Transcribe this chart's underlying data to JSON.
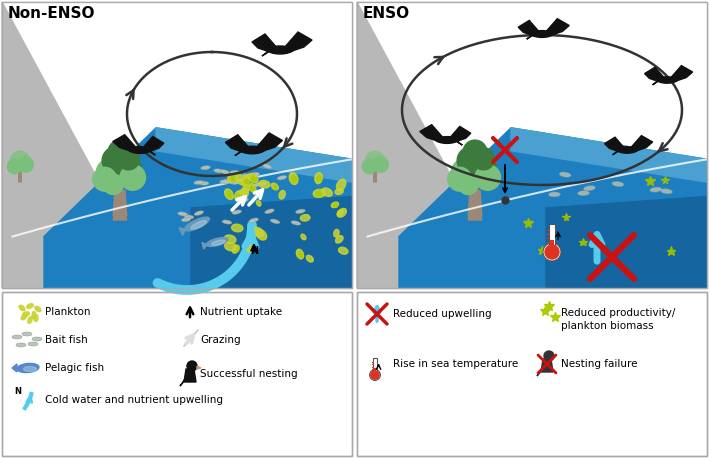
{
  "background_color": "#ffffff",
  "panel_left_title": "Non-ENSO",
  "panel_right_title": "ENSO",
  "legend_left_col1": [
    {
      "label": "Plankton",
      "type": "plankton"
    },
    {
      "label": "Bait fish",
      "type": "bait_fish"
    },
    {
      "label": "Pelagic fish",
      "type": "pelagic_fish"
    },
    {
      "label": "Cold water and nutrient upwelling",
      "type": "upwelling"
    }
  ],
  "legend_left_col2": [
    {
      "label": "Nutrient uptake",
      "type": "nutrient_uptake"
    },
    {
      "label": "Grazing",
      "type": "grazing"
    },
    {
      "label": "Successful nesting",
      "type": "nesting"
    }
  ],
  "legend_right_col1": [
    {
      "label": "Reduced upwelling",
      "type": "reduced_upwelling"
    },
    {
      "label": "Rise in sea temperature",
      "type": "temperature"
    }
  ],
  "legend_right_col2": [
    {
      "label": "Reduced productivity/\nplankton biomass",
      "type": "reduced_plankton"
    },
    {
      "label": "Nesting failure",
      "type": "nesting_failure"
    }
  ],
  "ocean_deep": "#1565a0",
  "ocean_mid": "#1e7fc0",
  "ocean_light": "#4aa0d0",
  "ocean_lighter": "#62b8e8",
  "cliff_color": "#b8b8b8",
  "cliff_shadow": "#8a9aaa",
  "white": "#ffffff",
  "text_color": "#000000",
  "bird_color": "#111111",
  "tree_green_dark": "#3d7a3d",
  "tree_green_light": "#7abf7a",
  "tree_trunk": "#8a7060",
  "plankton_yellow": "#c8d430",
  "plankton_green": "#88aa00",
  "fish_gray": "#9aaa9a",
  "fish_blue": "#3a6faa",
  "upwell_blue": "#55ccee",
  "red_x": "#cc1111",
  "panel_border": "#aaaaaa"
}
